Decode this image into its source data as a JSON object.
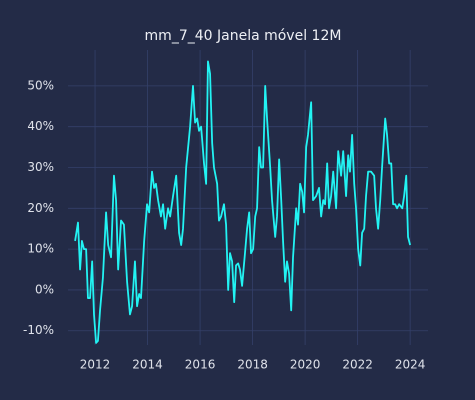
{
  "chart_data": {
    "type": "line",
    "title": "mm_7_40 Janela móvel 12M",
    "x": [
      2011.24,
      2011.35,
      2011.43,
      2011.5,
      2011.58,
      2011.66,
      2011.73,
      2011.81,
      2011.89,
      2011.96,
      2012.04,
      2012.11,
      2012.19,
      2012.3,
      2012.42,
      2012.5,
      2012.61,
      2012.72,
      2012.8,
      2012.88,
      2012.99,
      2013.1,
      2013.22,
      2013.33,
      2013.41,
      2013.52,
      2013.6,
      2013.68,
      2013.75,
      2013.87,
      2013.98,
      2014.06,
      2014.17,
      2014.25,
      2014.32,
      2014.4,
      2014.51,
      2014.59,
      2014.67,
      2014.78,
      2014.86,
      2014.97,
      2015.09,
      2015.2,
      2015.28,
      2015.35,
      2015.47,
      2015.62,
      2015.73,
      2015.81,
      2015.89,
      2015.96,
      2016.04,
      2016.15,
      2016.23,
      2016.3,
      2016.38,
      2016.46,
      2016.53,
      2016.65,
      2016.72,
      2016.8,
      2016.91,
      2016.99,
      2017.07,
      2017.14,
      2017.22,
      2017.3,
      2017.37,
      2017.45,
      2017.52,
      2017.6,
      2017.71,
      2017.79,
      2017.87,
      2017.94,
      2018.02,
      2018.1,
      2018.17,
      2018.25,
      2018.32,
      2018.4,
      2018.48,
      2018.55,
      2018.67,
      2018.74,
      2018.86,
      2018.93,
      2019.01,
      2019.09,
      2019.16,
      2019.24,
      2019.31,
      2019.39,
      2019.47,
      2019.54,
      2019.66,
      2019.73,
      2019.81,
      2019.89,
      2019.96,
      2020.04,
      2020.11,
      2020.23,
      2020.3,
      2020.42,
      2020.53,
      2020.61,
      2020.69,
      2020.76,
      2020.84,
      2020.91,
      2020.99,
      2021.07,
      2021.18,
      2021.26,
      2021.37,
      2021.45,
      2021.56,
      2021.64,
      2021.71,
      2021.79,
      2021.87,
      2021.94,
      2022.02,
      2022.1,
      2022.17,
      2022.25,
      2022.32,
      2022.4,
      2022.51,
      2022.63,
      2022.7,
      2022.78,
      2022.86,
      2022.93,
      2023.05,
      2023.12,
      2023.2,
      2023.28,
      2023.35,
      2023.43,
      2023.5,
      2023.58,
      2023.7,
      2023.77,
      2023.85,
      2023.92,
      2024.0
    ],
    "series": [
      {
        "name": "mm_7_40",
        "color": "#22f3f3",
        "values": [
          12,
          16.5,
          5,
          12,
          10,
          10,
          -2,
          -2,
          7,
          -6,
          -13,
          -12.5,
          -5,
          3,
          19,
          11,
          8,
          28,
          22,
          5,
          17,
          16,
          2,
          -6,
          -4,
          7,
          -4,
          -1,
          -2,
          12,
          21,
          19,
          29,
          25,
          26,
          22,
          18,
          21,
          15,
          20,
          18,
          23,
          28,
          14,
          11,
          15,
          30,
          40,
          50,
          41,
          42,
          39,
          40,
          31,
          26,
          56,
          53,
          36,
          30,
          26,
          17,
          18,
          21,
          16,
          0,
          9,
          7,
          -3,
          6,
          6.5,
          5,
          1,
          9,
          15,
          19,
          9,
          10,
          18,
          20,
          35,
          30,
          30,
          50,
          42,
          30,
          22,
          13,
          18,
          32,
          22,
          12,
          2,
          7,
          4,
          -5,
          8,
          20,
          16,
          26,
          24,
          19,
          35,
          38,
          46,
          22,
          23,
          25,
          18,
          22,
          21,
          31,
          20,
          23,
          29,
          20,
          34,
          28,
          34,
          23,
          33,
          29,
          38,
          26,
          20,
          10,
          6,
          14,
          15,
          23,
          29,
          29,
          28,
          20,
          15,
          22,
          30,
          42,
          38,
          31,
          31,
          21,
          21,
          20,
          21,
          20,
          23,
          28,
          13,
          11
        ]
      }
    ],
    "xlim": [
      2010.97,
      2024.68
    ],
    "xticks": [
      2012,
      2014,
      2016,
      2018,
      2020,
      2022,
      2024
    ],
    "ylim": [
      -13.5,
      58.8
    ],
    "yticks": [
      {
        "value": -10,
        "label": "-10%"
      },
      {
        "value": 0,
        "label": "0%"
      },
      {
        "value": 10,
        "label": "10%"
      },
      {
        "value": 20,
        "label": "20%"
      },
      {
        "value": 30,
        "label": "30%"
      },
      {
        "value": 40,
        "label": "40%"
      },
      {
        "value": 50,
        "label": "50%"
      }
    ],
    "grid": true
  }
}
